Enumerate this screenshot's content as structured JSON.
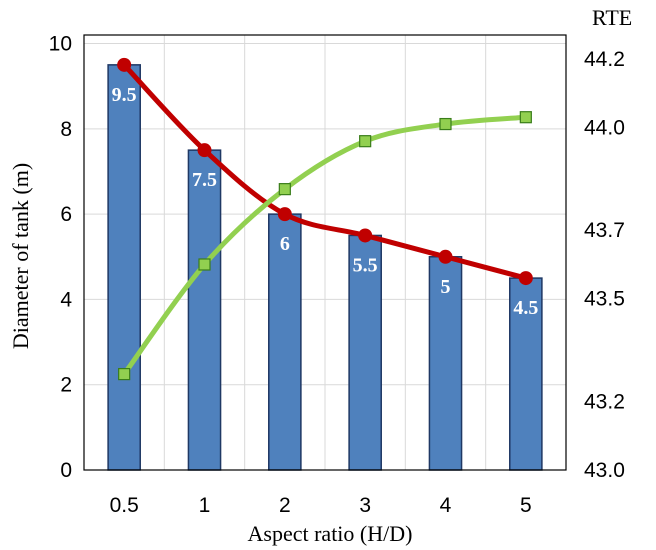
{
  "chart_data": {
    "type": "bar+line",
    "xlabel": "Aspect ratio (H/D)",
    "ylabel": "Diameter of tank (m)",
    "y2label": "RTE",
    "categories": [
      "0.5",
      "1",
      "2",
      "3",
      "4",
      "5"
    ],
    "ylim": [
      0,
      10.2
    ],
    "y_ticks": [
      0,
      2,
      4,
      6,
      8,
      10
    ],
    "y2lim": [
      43.0,
      44.27
    ],
    "y2_ticks": [
      "43.0",
      "43.2",
      "43.5",
      "43.7",
      "44.0",
      "44.2"
    ],
    "y2_tick_values": [
      43.0,
      43.2,
      43.5,
      43.7,
      44.0,
      44.2
    ],
    "grid": true,
    "series": [
      {
        "kind": "bar",
        "axis": "left",
        "values": [
          9.5,
          7.5,
          6,
          5.5,
          5,
          4.5
        ],
        "data_labels": [
          "9.5",
          "7.5",
          "6",
          "5.5",
          "5",
          "4.5"
        ],
        "color": "#4f81bd",
        "edge_color": "#1f3864"
      },
      {
        "kind": "line",
        "axis": "left",
        "values": [
          9.5,
          7.5,
          6,
          5.5,
          5,
          4.5
        ],
        "color": "#c00000",
        "marker": "circle"
      },
      {
        "kind": "line",
        "axis": "right",
        "values": [
          43.28,
          43.6,
          43.82,
          43.96,
          44.01,
          44.03
        ],
        "color": "#92d050",
        "marker": "square"
      }
    ]
  }
}
